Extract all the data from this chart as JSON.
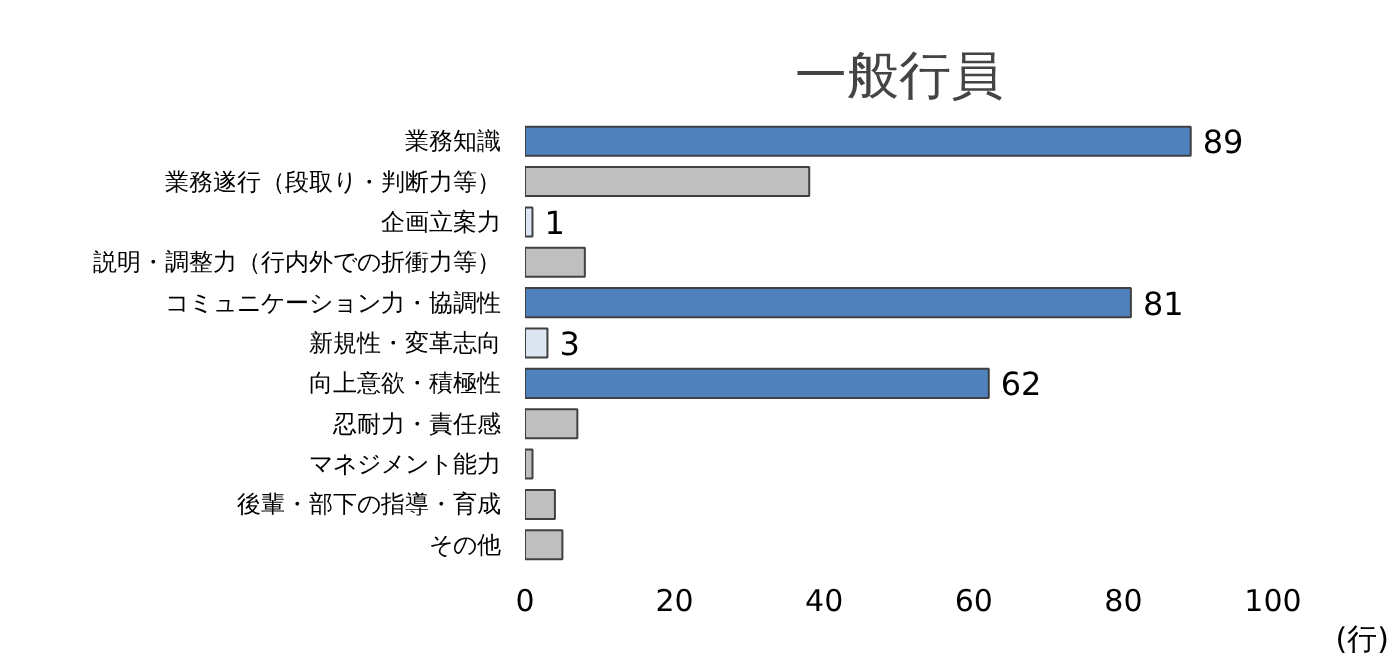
{
  "chart_data": {
    "type": "bar",
    "orientation": "horizontal",
    "title": "一般行員",
    "xlabel": "(行)",
    "categories": [
      "業務知識",
      "業務遂行（段取り・判断力等）",
      "企画立案力",
      "説明・調整力（行内外での折衝力等）",
      "コミュニケーション力・協調性",
      "新規性・変革志向",
      "向上意欲・積極性",
      "忍耐力・責任感",
      "マネジメント能力",
      "後輩・部下の指導・育成",
      "その他"
    ],
    "values": [
      89,
      38,
      1,
      8,
      81,
      3,
      62,
      7,
      1,
      4,
      5
    ],
    "value_labels": [
      "89",
      null,
      "1",
      null,
      "81",
      "3",
      "62",
      null,
      null,
      null,
      null
    ],
    "colors": [
      "#4f81bd",
      "#bfbfbf",
      "#dce6f2",
      "#bfbfbf",
      "#4f81bd",
      "#dce6f2",
      "#4f81bd",
      "#bfbfbf",
      "#bfbfbf",
      "#bfbfbf",
      "#bfbfbf"
    ],
    "xlim": [
      0,
      100
    ],
    "xticks": [
      0,
      20,
      40,
      60,
      80,
      100
    ],
    "grid": false
  }
}
